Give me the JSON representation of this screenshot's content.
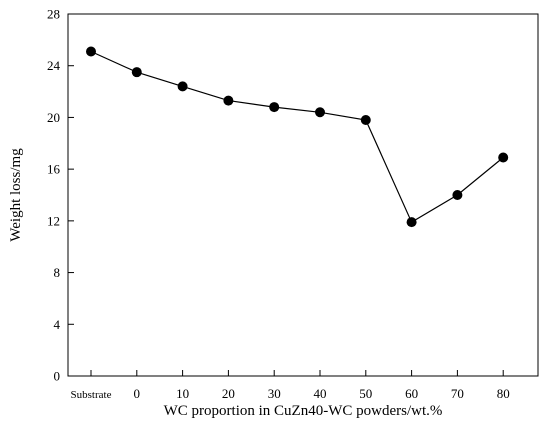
{
  "chart_data": {
    "type": "line",
    "title": "",
    "xlabel": "WC proportion in CuZn40-WC powders/wt.%",
    "ylabel": "Weight loss/mg",
    "categories": [
      "Substrate",
      "0",
      "10",
      "20",
      "30",
      "40",
      "50",
      "60",
      "70",
      "80"
    ],
    "series": [
      {
        "values": [
          25.1,
          23.5,
          22.4,
          21.3,
          20.8,
          20.4,
          19.8,
          11.9,
          14.0,
          16.9
        ]
      }
    ],
    "ylim": [
      0,
      28
    ],
    "yticks": [
      "0",
      "4",
      "8",
      "12",
      "16",
      "20",
      "24",
      "28"
    ],
    "grid": false,
    "legend": "none",
    "marker": "filled-circle",
    "colors": {
      "line": "#000000",
      "marker": "#000000",
      "axis": "#000000"
    }
  }
}
